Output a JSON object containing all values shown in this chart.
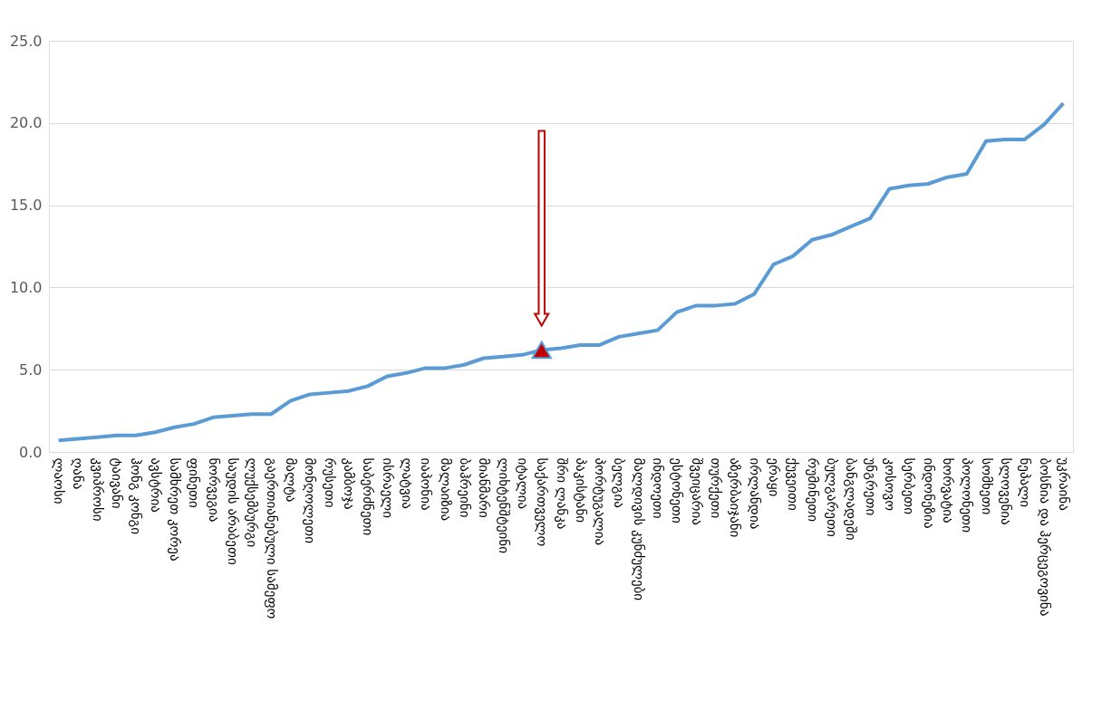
{
  "chart_data": {
    "type": "line",
    "categories": [
      "ლაოსი",
      "ღანა",
      "კვიპროსი",
      "ტაივანი",
      "ჰონგ კონგი",
      "ავსტრია",
      "სამხრეთ კორეა",
      "ფინეთი",
      "ნორვეგია",
      "საუდის არაბეთი",
      "ლუქსემბურგი",
      "გაერთიანებული სამეფო",
      "მალტა",
      "მონღოლეთი",
      "რუსეთი",
      "კამბოჯა",
      "საბერძნეთი",
      "ისრაელი",
      "ლატვია",
      "იაპონია",
      "მალაიზია",
      "ბაჰრეინი",
      "მიანმარი",
      "ლიხტენშტეინი",
      "იტალია",
      "საქართველო",
      "შრი ლანკა",
      "პაკისტანი",
      "პორტუგალია",
      "ბელგია",
      "მალდივის კუნძულები",
      "ინდოეთი",
      "ესტონეთი",
      "შვეიცარია",
      "თურქეთი",
      "აზერბაიჯანი",
      "ირლანდია",
      "ერაყი",
      "ქუვეითი",
      "რუმინეთი",
      "ბულგარეთი",
      "ბანგლადეში",
      "უნგრეთი",
      "კოსოვო",
      "სერბეთი",
      "ინდონეზია",
      "ხორვატია",
      "პოლონეთი",
      "სომხეთი",
      "სლოვენია",
      "ნეპალი",
      "ბოსნია და ჰერცეგოვინა",
      "უკრაინა"
    ],
    "series": [
      {
        "color": "#5b9bd5",
        "marker": "none",
        "line_style": "solid",
        "values": [
          0.7,
          0.8,
          0.9,
          1.0,
          1.0,
          1.2,
          1.5,
          1.7,
          2.1,
          2.2,
          2.3,
          2.3,
          3.1,
          3.5,
          3.6,
          3.7,
          4.0,
          4.6,
          4.8,
          5.1,
          5.1,
          5.3,
          5.7,
          5.8,
          5.9,
          6.2,
          6.3,
          6.5,
          6.5,
          7.0,
          7.2,
          7.4,
          8.5,
          8.9,
          8.9,
          9.0,
          9.6,
          11.4,
          11.9,
          12.9,
          13.2,
          13.7,
          14.2,
          16.0,
          16.2,
          16.3,
          16.7,
          16.9,
          18.9,
          19.0,
          19.0,
          19.9,
          21.2
        ]
      },
      {
        "type": "scatter",
        "color": "#c00000",
        "marker": "triangle",
        "x": [
          "საქართველო"
        ],
        "values": [
          6.2
        ]
      }
    ],
    "ylim": [
      0,
      25
    ],
    "yticks": [
      {
        "value": 0,
        "label": "0.0"
      },
      {
        "value": 5,
        "label": "5.0"
      },
      {
        "value": 10,
        "label": "10.0"
      },
      {
        "value": 15,
        "label": "15.0"
      },
      {
        "value": 20,
        "label": "20.0"
      },
      {
        "value": 25,
        "label": "25.0"
      }
    ],
    "grid": "y",
    "legend": false
  }
}
